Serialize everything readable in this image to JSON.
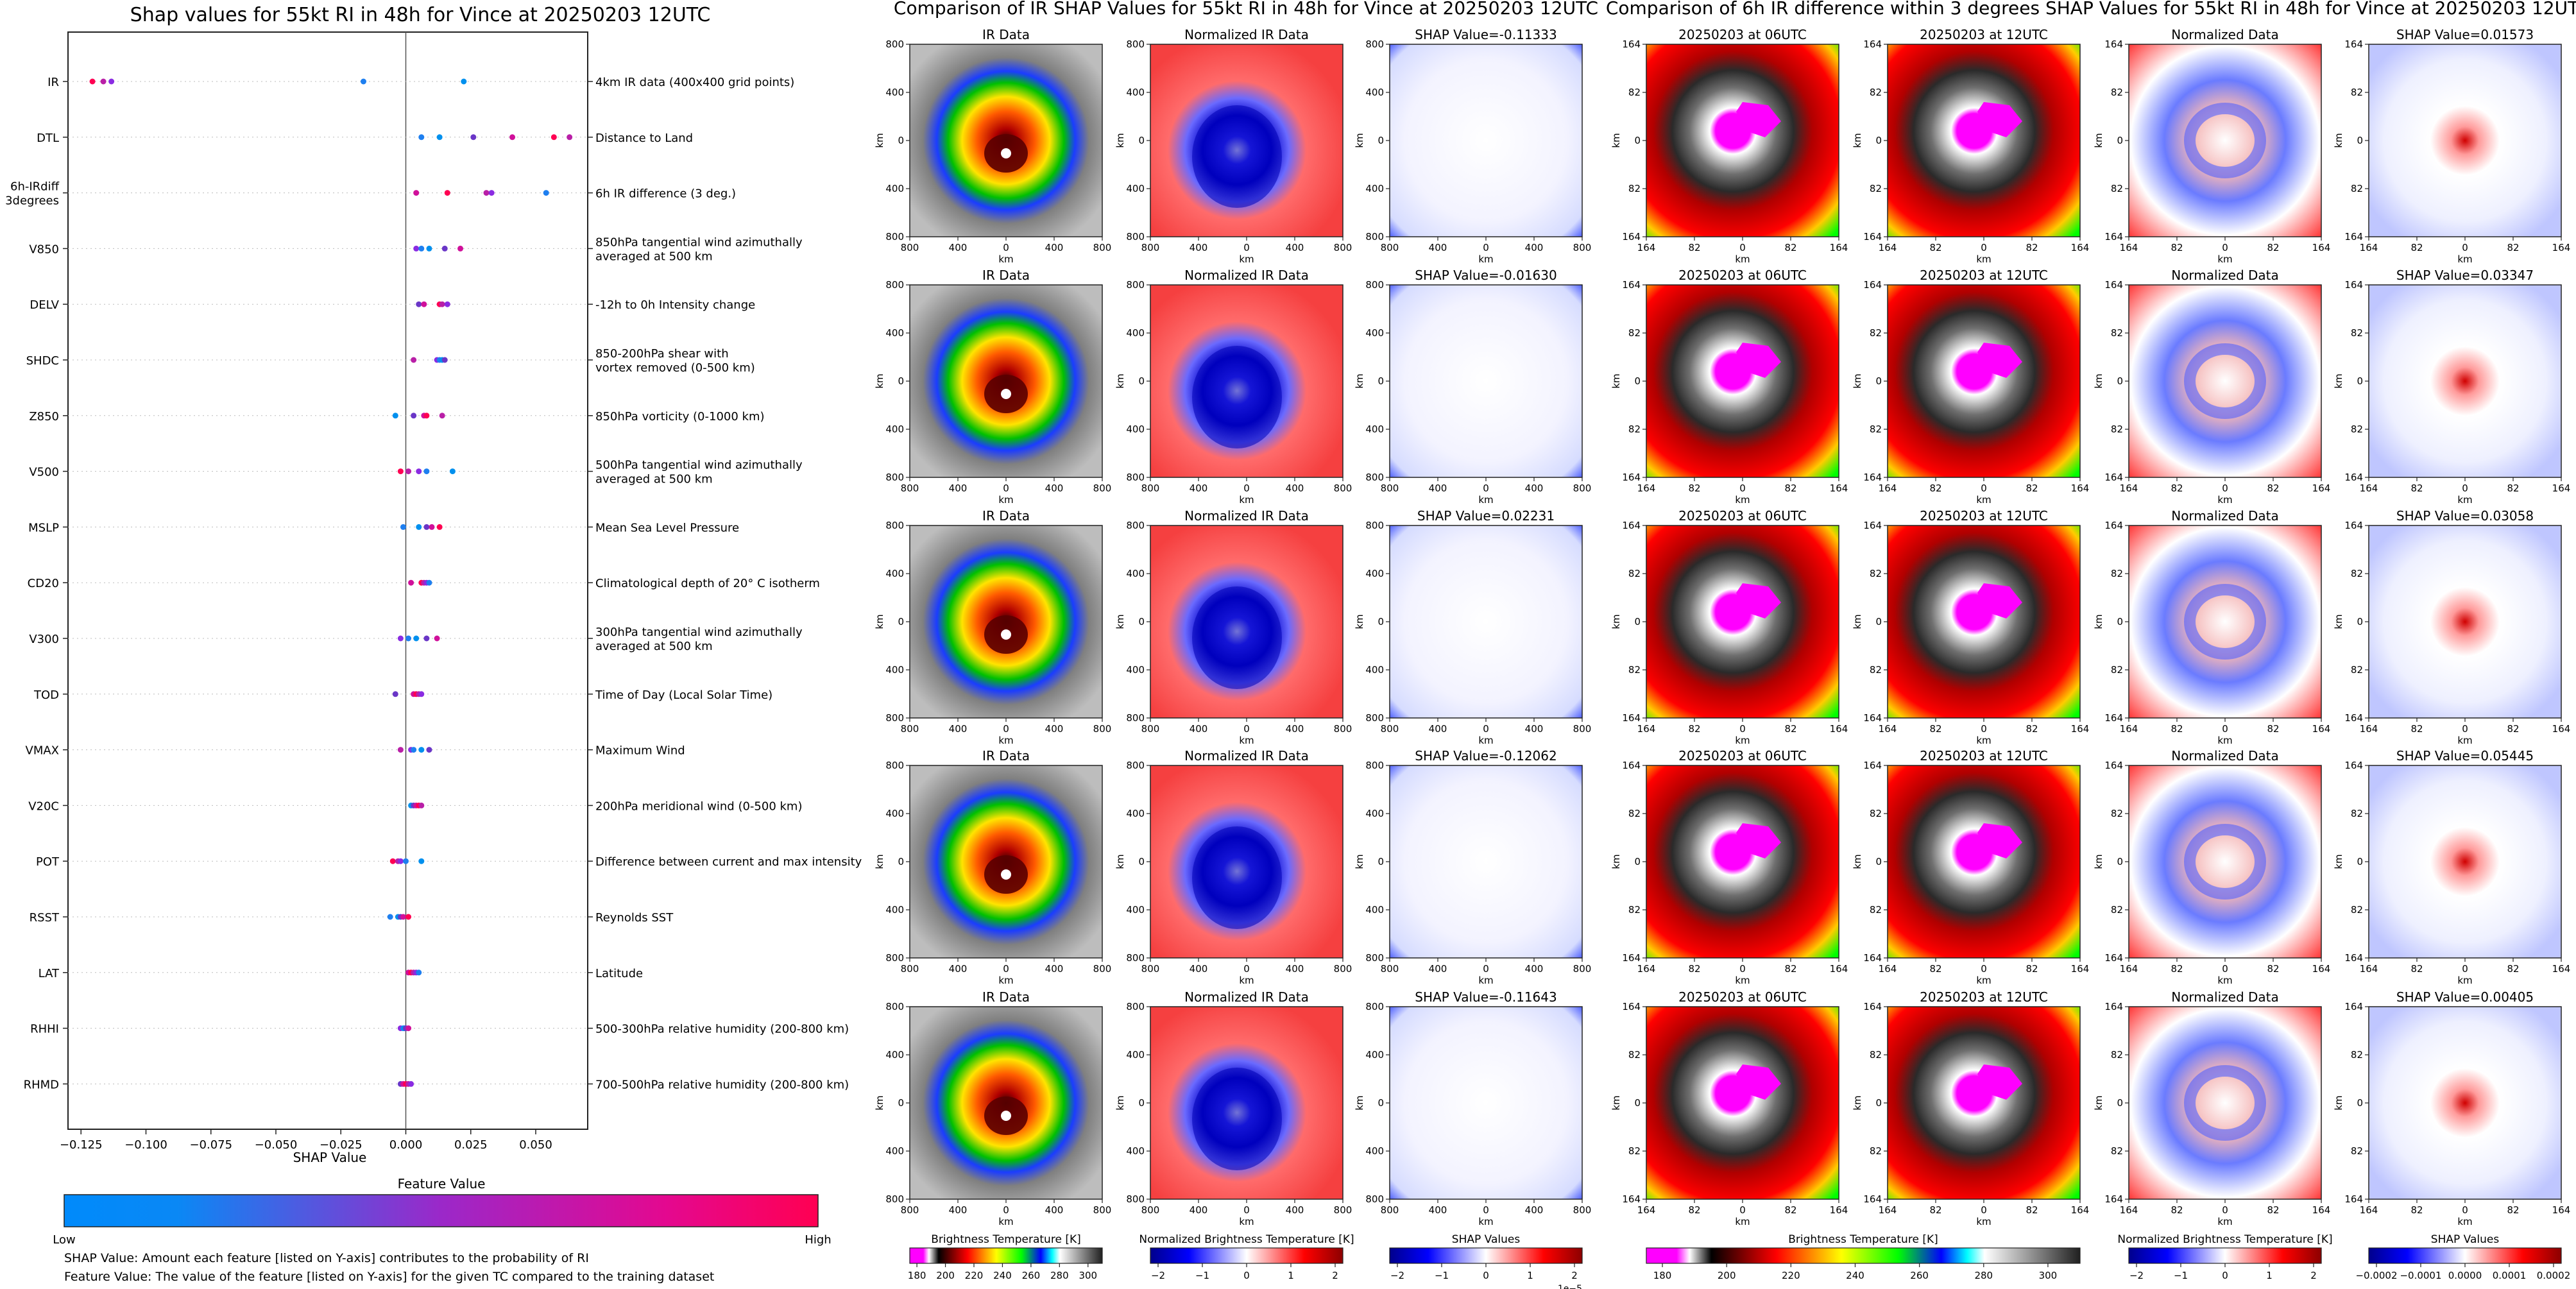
{
  "swarm": {
    "title": "Shap values for 55kt RI in 48h for Vince at 20250203 12UTC",
    "xlabel": "SHAP Value",
    "xticks": [
      "−0.125",
      "−0.100",
      "−0.075",
      "−0.050",
      "−0.025",
      "0.000",
      "0.025",
      "0.050"
    ],
    "colorbar_title": "Feature Value",
    "colorbar_low": "Low",
    "colorbar_high": "High",
    "note1": "SHAP Value: Amount each feature [listed on Y-axis] contributes to the probability of RI",
    "note2": "Feature Value: The value of the feature [listed on Y-axis] for the given TC compared to the training dataset",
    "colors": {
      "low": "#008afb",
      "high": "#ff0052"
    }
  },
  "chart_data": [
    {
      "type": "scatter",
      "title": "Shap values for 55kt RI in 48h for Vince at 20250203 12UTC",
      "xlabel": "SHAP Value",
      "xlim": [
        -0.13,
        0.07
      ],
      "features": [
        {
          "name": "IR",
          "desc": "4km IR data (400x400 grid points)",
          "values": [
            -0.1206,
            -0.1164,
            -0.1133,
            -0.0163,
            0.0223
          ]
        },
        {
          "name": "DTL",
          "desc": "Distance to Land",
          "values": [
            0.006,
            0.013,
            0.026,
            0.041,
            0.057,
            0.063
          ]
        },
        {
          "name": "6h-IRdiff\n3degrees",
          "desc": "6h IR difference (3 deg.)",
          "values": [
            0.004,
            0.016,
            0.031,
            0.033,
            0.054
          ]
        },
        {
          "name": "V850",
          "desc": "850hPa tangential wind azimuthally\naveraged at 500 km",
          "values": [
            0.004,
            0.006,
            0.009,
            0.015,
            0.021
          ]
        },
        {
          "name": "DELV",
          "desc": "-12h to 0h Intensity change",
          "values": [
            0.005,
            0.007,
            0.013,
            0.014,
            0.016
          ]
        },
        {
          "name": "SHDC",
          "desc": "850-200hPa shear with\nvortex removed (0-500 km)",
          "values": [
            0.003,
            0.012,
            0.013,
            0.014,
            0.015
          ]
        },
        {
          "name": "Z850",
          "desc": "850hPa vorticity (0-1000 km)",
          "values": [
            -0.004,
            0.003,
            0.007,
            0.008,
            0.014
          ]
        },
        {
          "name": "V500",
          "desc": "500hPa tangential wind azimuthally\naveraged at 500 km",
          "values": [
            -0.002,
            0.001,
            0.005,
            0.008,
            0.018
          ]
        },
        {
          "name": "MSLP",
          "desc": "Mean Sea Level Pressure",
          "values": [
            -0.001,
            0.005,
            0.008,
            0.01,
            0.013
          ]
        },
        {
          "name": "CD20",
          "desc": "Climatological depth of 20° C isotherm",
          "values": [
            0.002,
            0.006,
            0.007,
            0.008,
            0.009
          ]
        },
        {
          "name": "V300",
          "desc": "300hPa tangential wind azimuthally\naveraged at 500 km",
          "values": [
            -0.002,
            0.001,
            0.004,
            0.008,
            0.012
          ]
        },
        {
          "name": "TOD",
          "desc": "Time of Day (Local Solar Time)",
          "values": [
            -0.004,
            0.003,
            0.004,
            0.005,
            0.006
          ]
        },
        {
          "name": "VMAX",
          "desc": "Maximum Wind",
          "values": [
            -0.002,
            0.002,
            0.003,
            0.006,
            0.009
          ]
        },
        {
          "name": "V20C",
          "desc": "200hPa meridional wind (0-500 km)",
          "values": [
            0.002,
            0.003,
            0.004,
            0.005,
            0.006
          ]
        },
        {
          "name": "POT",
          "desc": "Difference between current and max intensity",
          "values": [
            -0.005,
            -0.003,
            -0.002,
            0.0,
            0.006
          ]
        },
        {
          "name": "RSST",
          "desc": "Reynolds SST",
          "values": [
            -0.006,
            -0.003,
            -0.002,
            -0.001,
            0.001
          ]
        },
        {
          "name": "LAT",
          "desc": "Latitude",
          "values": [
            0.001,
            0.002,
            0.003,
            0.004,
            0.005
          ]
        },
        {
          "name": "RHHI",
          "desc": "500-300hPa relative humidity (200-800 km)",
          "values": [
            -0.002,
            -0.001,
            -0.0005,
            0.0,
            0.001
          ]
        },
        {
          "name": "RHMD",
          "desc": "700-500hPa relative humidity (200-800 km)",
          "values": [
            -0.002,
            -0.001,
            0.0,
            0.001,
            0.002
          ]
        }
      ],
      "point_colors": [
        "#ff0052",
        "#b91fa7",
        "#8a2be2",
        "#1e7ff0",
        "#0090ee",
        "#6a36c7",
        "#d0109a"
      ]
    }
  ],
  "ir_panel": {
    "title": "Comparison of IR SHAP Values for 55kt RI in 48h for Vince at 20250203 12UTC",
    "col_titles": [
      "IR Data",
      "Normalized IR Data"
    ],
    "shap_titles": [
      "SHAP Value=-0.11333",
      "SHAP Value=-0.01630",
      "SHAP Value=0.02231",
      "SHAP Value=-0.12062",
      "SHAP Value=-0.11643"
    ],
    "ticks": [
      "800",
      "400",
      "0",
      "400",
      "800"
    ],
    "axis_label": "km",
    "cbars": [
      {
        "label": "Brightness Temperature [K]",
        "ticks": [
          "180",
          "200",
          "220",
          "240",
          "260",
          "280",
          "300"
        ]
      },
      {
        "label": "Normalized Brightness Temperature [K]",
        "ticks": [
          "−2",
          "−1",
          "0",
          "1",
          "2"
        ]
      },
      {
        "label": "SHAP Values",
        "ticks": [
          "−2",
          "−1",
          "0",
          "1",
          "2"
        ],
        "exp": "1e−5"
      }
    ]
  },
  "diff_panel": {
    "title": "Comparison of 6h IR difference within 3 degrees SHAP Values for 55kt RI in 48h for Vince at 20250203 12UTC",
    "col_titles": [
      "20250203 at 06UTC",
      "20250203 at 12UTC",
      "Normalized Data"
    ],
    "shap_titles": [
      "SHAP Value=0.01573",
      "SHAP Value=0.03347",
      "SHAP Value=0.03058",
      "SHAP Value=0.05445",
      "SHAP Value=0.00405"
    ],
    "ticks": [
      "164",
      "82",
      "0",
      "82",
      "164"
    ],
    "axis_label": "km",
    "cbars": [
      {
        "label": "Brightness Temperature [K]",
        "ticks": [
          "180",
          "200",
          "220",
          "240",
          "260",
          "280",
          "300"
        ]
      },
      {
        "label": "Normalized Brightness Temperature [K]",
        "ticks": [
          "−2",
          "−1",
          "0",
          "1",
          "2"
        ]
      },
      {
        "label": "SHAP Values",
        "ticks": [
          "−0.0002",
          "−0.0001",
          "0.0000",
          "0.0001",
          "0.0002"
        ]
      }
    ]
  }
}
